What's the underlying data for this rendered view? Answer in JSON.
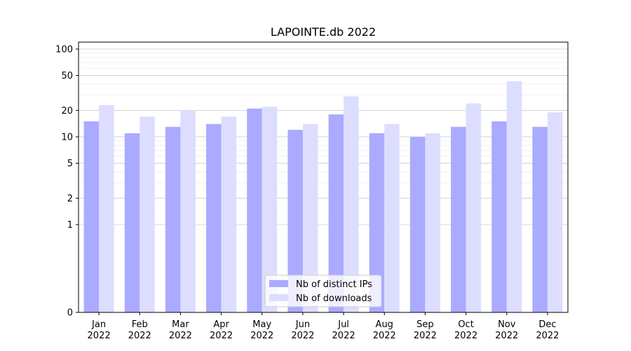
{
  "chart_data": {
    "type": "bar",
    "title": "LAPOINTE.db 2022",
    "xlabel": "",
    "ylabel": "",
    "yscale": "symlog",
    "ylim": [
      0,
      120
    ],
    "yticks": [
      0,
      1,
      2,
      5,
      10,
      20,
      50,
      100
    ],
    "grid": true,
    "legend_position": "lower-center",
    "categories": [
      [
        "Jan",
        "2022"
      ],
      [
        "Feb",
        "2022"
      ],
      [
        "Mar",
        "2022"
      ],
      [
        "Apr",
        "2022"
      ],
      [
        "May",
        "2022"
      ],
      [
        "Jun",
        "2022"
      ],
      [
        "Jul",
        "2022"
      ],
      [
        "Aug",
        "2022"
      ],
      [
        "Sep",
        "2022"
      ],
      [
        "Oct",
        "2022"
      ],
      [
        "Nov",
        "2022"
      ],
      [
        "Dec",
        "2022"
      ]
    ],
    "series": [
      {
        "name": "Nb of distinct IPs",
        "color": "#aaaaff",
        "values": [
          15,
          11,
          13,
          14,
          21,
          12,
          18,
          11,
          10,
          13,
          15,
          13
        ]
      },
      {
        "name": "Nb of downloads",
        "color": "#ddddff",
        "values": [
          23,
          17,
          20,
          17,
          22,
          14,
          29,
          14,
          11,
          24,
          43,
          19
        ]
      }
    ]
  }
}
